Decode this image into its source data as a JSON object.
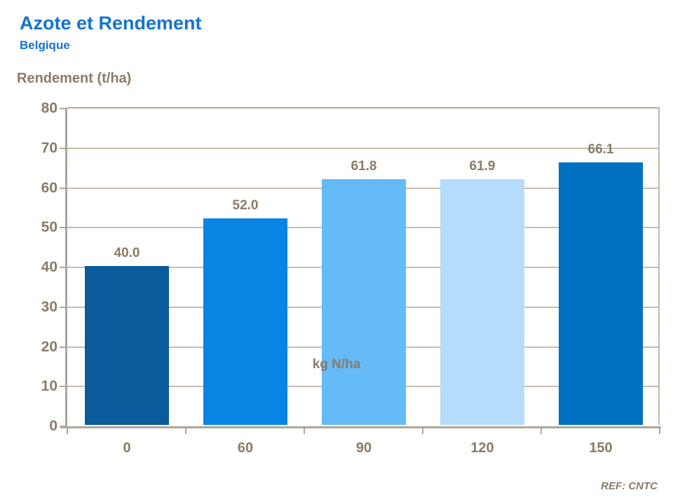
{
  "header": {
    "title": "Azote et Rendement",
    "subtitle": "Belgique"
  },
  "chart_data": {
    "type": "bar",
    "categories": [
      "0",
      "60",
      "90",
      "120",
      "150"
    ],
    "values": [
      40.0,
      52.0,
      61.8,
      61.9,
      66.1
    ],
    "value_labels": [
      "40.0",
      "52.0",
      "61.8",
      "61.9",
      "66.1"
    ],
    "title": "Azote et Rendement",
    "subtitle": "Belgique",
    "xlabel": "kg N/ha",
    "ylabel": "Rendement (t/ha)",
    "ylim": [
      0,
      80
    ],
    "ytick_step": 10,
    "yticks": [
      0,
      10,
      20,
      30,
      40,
      50,
      60,
      70,
      80
    ],
    "grid": "horizontal",
    "legend": "none",
    "bar_colors": [
      "#0B5A9C",
      "#0984E3",
      "#65BAF8",
      "#B5DCFB",
      "#0070C0"
    ]
  },
  "footer": {
    "ref": "REF: CNTC"
  },
  "theme": {
    "title_color": "#1473D0",
    "axis_text_color": "#8A7B67",
    "grid_color": "#C6BDAE",
    "axis_color": "#B0A698"
  }
}
